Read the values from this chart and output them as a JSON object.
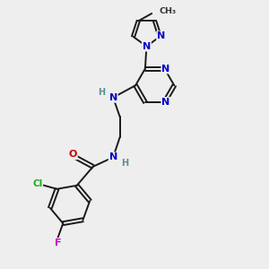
{
  "background_color": "#eeeeee",
  "bond_color": "#1a1a1a",
  "atom_colors": {
    "N": "#0000cc",
    "O": "#cc0000",
    "Cl": "#22aa22",
    "F": "#cc00cc",
    "C": "#1a1a1a",
    "H": "#5a9090"
  }
}
